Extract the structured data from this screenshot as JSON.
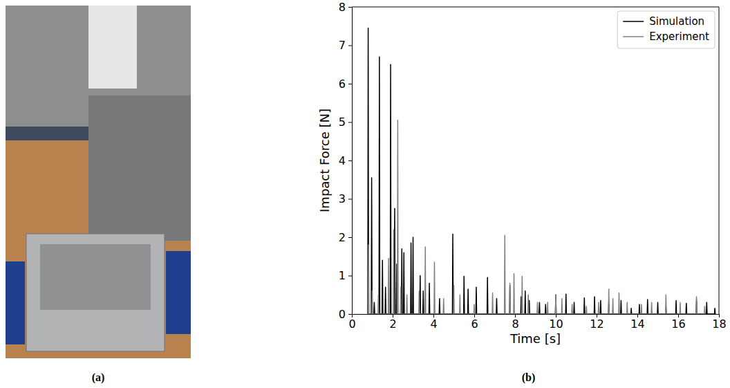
{
  "panel_labels": [
    "(a)",
    "(b)"
  ],
  "chart_data": {
    "type": "line",
    "x_label": "Time [s]",
    "y_label": "Impact Force [N]",
    "xlim": [
      0,
      18
    ],
    "xticks": [
      0,
      2,
      4,
      6,
      8,
      10,
      12,
      14,
      16,
      18
    ],
    "ylim": [
      0,
      8
    ],
    "yticks": [
      0,
      1,
      2,
      3,
      4,
      5,
      6,
      7,
      8
    ],
    "grid": false,
    "legend": "upper right",
    "series": [
      {
        "name": "Simulation",
        "color": "#000000",
        "x": [
          0.78,
          0.8,
          0.82,
          0.95,
          0.97,
          0.99,
          1.08,
          1.1,
          1.12,
          1.33,
          1.35,
          1.37,
          1.48,
          1.5,
          1.52,
          1.63,
          1.65,
          1.67,
          1.88,
          1.9,
          1.92,
          2.08,
          2.1,
          2.12,
          2.18,
          2.2,
          2.22,
          2.43,
          2.45,
          2.47,
          2.53,
          2.55,
          2.57,
          2.88,
          2.9,
          2.92,
          2.98,
          3,
          3.02,
          3.33,
          3.35,
          3.37,
          3.48,
          3.5,
          3.52,
          3.78,
          3.8,
          3.82,
          4.28,
          4.3,
          4.32,
          4.93,
          4.95,
          4.97,
          5.48,
          5.5,
          5.52,
          5.68,
          5.7,
          5.72,
          6.08,
          6.1,
          6.12,
          6.63,
          6.65,
          6.67,
          7.08,
          7.1,
          7.12,
          7.73,
          7.75,
          7.77,
          8.28,
          8.3,
          8.32,
          8.48,
          8.5,
          8.52,
          8.68,
          8.7,
          8.72,
          9.18,
          9.2,
          9.22,
          9.48,
          9.5,
          9.52,
          9.98,
          10,
          10.02,
          10.48,
          10.5,
          10.52,
          10.88,
          10.9,
          10.92,
          11.38,
          11.4,
          11.42,
          11.88,
          11.9,
          11.92,
          12.18,
          12.2,
          12.22,
          12.58,
          12.6,
          12.62,
          13.18,
          13.2,
          13.22,
          13.68,
          13.7,
          13.72,
          14.08,
          14.1,
          14.12,
          14.48,
          14.5,
          14.52,
          14.98,
          15,
          15.02,
          15.38,
          15.4,
          15.42,
          15.88,
          15.9,
          15.92,
          16.38,
          16.4,
          16.42,
          16.88,
          16.9,
          16.92,
          17.38,
          17.4,
          17.42,
          17.78,
          17.8,
          17.82
        ],
        "values": [
          0,
          7.45,
          0,
          0,
          3.55,
          0,
          0,
          0.3,
          0,
          0,
          6.7,
          0,
          0,
          1.4,
          0,
          0,
          0.7,
          0,
          0,
          6.5,
          0,
          0,
          2.75,
          0,
          0,
          1.3,
          0,
          0,
          1.7,
          0,
          0,
          1.6,
          0,
          0,
          1.85,
          0,
          0,
          2.0,
          0,
          0,
          1.0,
          0,
          0,
          0.6,
          0,
          0,
          0.8,
          0,
          0,
          0.4,
          0,
          0,
          2.08,
          0,
          0,
          0.98,
          0,
          0,
          0.65,
          0,
          0,
          0.7,
          0,
          0,
          0.95,
          0,
          0,
          0.4,
          0,
          0,
          0.75,
          0,
          0,
          0.45,
          0,
          0,
          0.6,
          0,
          0,
          0.35,
          0,
          0,
          0.3,
          0,
          0,
          0.25,
          0,
          0,
          0.5,
          0,
          0,
          0.52,
          0,
          0,
          0.3,
          0,
          0,
          0.42,
          0,
          0,
          0.45,
          0,
          0,
          0.35,
          0,
          0,
          0.3,
          0,
          0,
          0.35,
          0,
          0,
          0.15,
          0,
          0,
          0.25,
          0,
          0,
          0.38,
          0,
          0,
          0.3,
          0,
          0,
          0.2,
          0,
          0,
          0.35,
          0,
          0,
          0.28,
          0,
          0,
          0.37,
          0,
          0,
          0.3,
          0,
          0,
          0.15,
          0
        ]
      },
      {
        "name": "Experiment",
        "color": "#808080",
        "x": [
          0.8,
          0.82,
          0.84,
          0.98,
          1,
          1.02,
          1.28,
          1.3,
          1.32,
          1.78,
          1.8,
          1.82,
          2.03,
          2.05,
          2.07,
          2.23,
          2.25,
          2.27,
          2.38,
          2.4,
          2.42,
          2.68,
          2.7,
          2.72,
          3.28,
          3.3,
          3.32,
          3.58,
          3.6,
          3.62,
          4.03,
          4.05,
          4.07,
          4.48,
          4.5,
          4.52,
          4.98,
          5,
          5.02,
          5.28,
          5.3,
          5.32,
          5.98,
          6,
          6.02,
          6.88,
          6.9,
          6.92,
          7.48,
          7.5,
          7.52,
          7.73,
          7.75,
          7.77,
          7.93,
          7.95,
          7.97,
          8.33,
          8.35,
          8.37,
          8.63,
          8.65,
          8.67,
          9.08,
          9.1,
          9.12,
          9.58,
          9.6,
          9.62,
          9.98,
          10,
          10.02,
          10.28,
          10.3,
          10.32,
          10.78,
          10.8,
          10.82,
          11.48,
          11.5,
          11.52,
          12.08,
          12.1,
          12.12,
          12.58,
          12.6,
          12.62,
          12.78,
          12.8,
          12.82,
          13.08,
          13.1,
          13.12,
          13.48,
          13.5,
          13.52,
          14.18,
          14.2,
          14.22,
          14.68,
          14.7,
          14.72,
          15.38,
          15.4,
          15.42,
          16.08,
          16.1,
          16.12,
          16.88,
          16.9,
          16.92,
          17.28,
          17.3,
          17.32
        ],
        "values": [
          0,
          1.8,
          0,
          0,
          0.6,
          0,
          0,
          0.5,
          0,
          0,
          1.45,
          0,
          0,
          2.2,
          0,
          0,
          5.05,
          0,
          0,
          0.7,
          0,
          0,
          0.5,
          0,
          0,
          0.6,
          0,
          0,
          1.75,
          0,
          0,
          1.35,
          0,
          0,
          0.4,
          0,
          0,
          0.75,
          0,
          0,
          0.5,
          0,
          0,
          0.25,
          0,
          0,
          0.55,
          0,
          0,
          2.05,
          0,
          0,
          0.8,
          0,
          0,
          1.05,
          0,
          0,
          0.98,
          0,
          0,
          0.5,
          0,
          0,
          0.3,
          0,
          0,
          0.3,
          0,
          0,
          0.5,
          0,
          0,
          0.4,
          0,
          0,
          0.25,
          0,
          0,
          0.2,
          0,
          0,
          0.3,
          0,
          0,
          0.65,
          0,
          0,
          0.4,
          0,
          0,
          0.55,
          0,
          0,
          0.3,
          0,
          0,
          0.25,
          0,
          0,
          0.3,
          0,
          0,
          0.5,
          0,
          0,
          0.3,
          0,
          0,
          0.45,
          0,
          0,
          0.2,
          0
        ]
      }
    ]
  }
}
